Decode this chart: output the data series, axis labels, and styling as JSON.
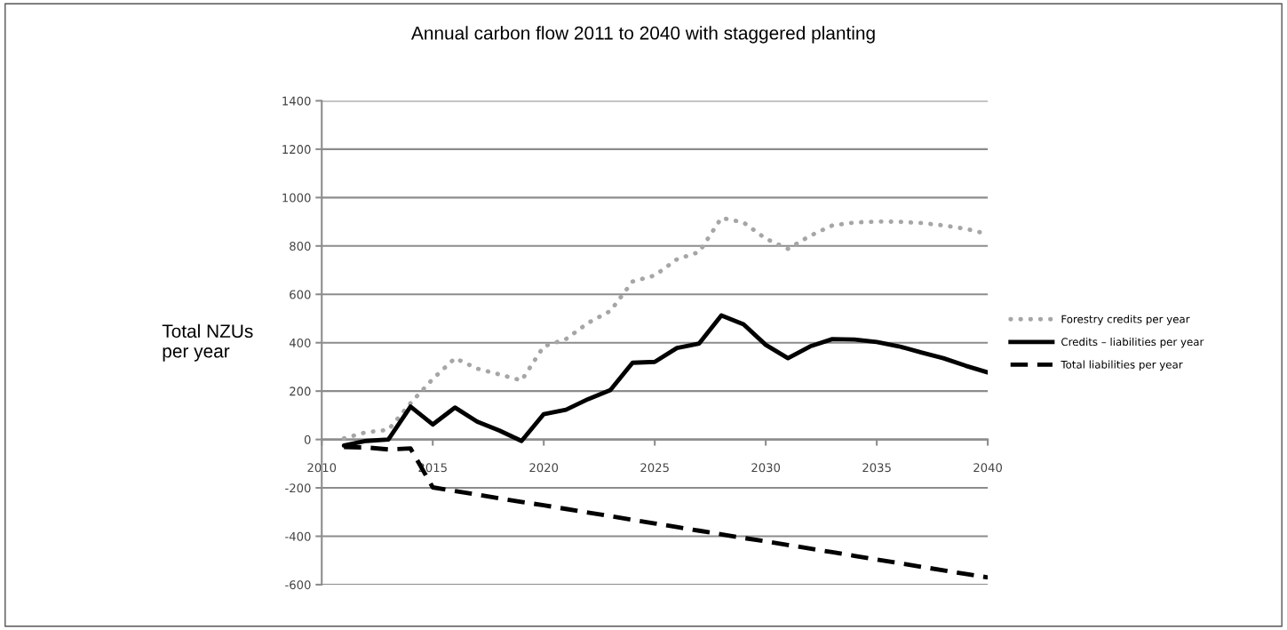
{
  "chart_data": {
    "type": "line",
    "title": "Annual carbon flow 2011 to 2040 with staggered planting",
    "ylabel": "Total NZUs\nper year",
    "x": [
      2011,
      2012,
      2013,
      2014,
      2015,
      2016,
      2017,
      2018,
      2019,
      2020,
      2021,
      2022,
      2023,
      2024,
      2025,
      2026,
      2027,
      2028,
      2029,
      2030,
      2031,
      2032,
      2033,
      2034,
      2035,
      2036,
      2037,
      2038,
      2039,
      2040
    ],
    "series": [
      {
        "name": "Forestry credits per year",
        "color": "#a6a6a6",
        "line_style": "dotted",
        "values": [
          5,
          30,
          40,
          150,
          250,
          336,
          293,
          269,
          244,
          385,
          415,
          482,
          531,
          653,
          678,
          745,
          775,
          916,
          897,
          830,
          788,
          842,
          885,
          897,
          901,
          900,
          895,
          885,
          871,
          849
        ]
      },
      {
        "name": "Credits – liabilities per year",
        "color": "#000000",
        "line_style": "solid",
        "values": [
          -25,
          -6,
          0,
          136,
          62,
          132,
          74,
          37,
          -6,
          105,
          123,
          167,
          204,
          317,
          321,
          378,
          397,
          513,
          476,
          391,
          336,
          385,
          415,
          413,
          403,
          385,
          360,
          336,
          305,
          277
        ]
      },
      {
        "name": "Total liabilities per year",
        "color": "#000000",
        "line_style": "dashed",
        "values": [
          -31,
          -33,
          -41,
          -37,
          -198,
          -213,
          -228,
          -243,
          -258,
          -272,
          -287,
          -302,
          -317,
          -332,
          -347,
          -362,
          -377,
          -392,
          -407,
          -421,
          -436,
          -451,
          -466,
          -481,
          -496,
          -511,
          -526,
          -541,
          -556,
          -570
        ]
      }
    ],
    "xlim": [
      2010,
      2040
    ],
    "xticks": [
      2010,
      2015,
      2020,
      2025,
      2030,
      2035,
      2040
    ],
    "ylim": [
      -600,
      1400
    ],
    "yticks": [
      -600,
      -400,
      -200,
      0,
      200,
      400,
      600,
      800,
      1000,
      1200,
      1400
    ],
    "grid": "y",
    "legend": "right",
    "marker": "none"
  }
}
